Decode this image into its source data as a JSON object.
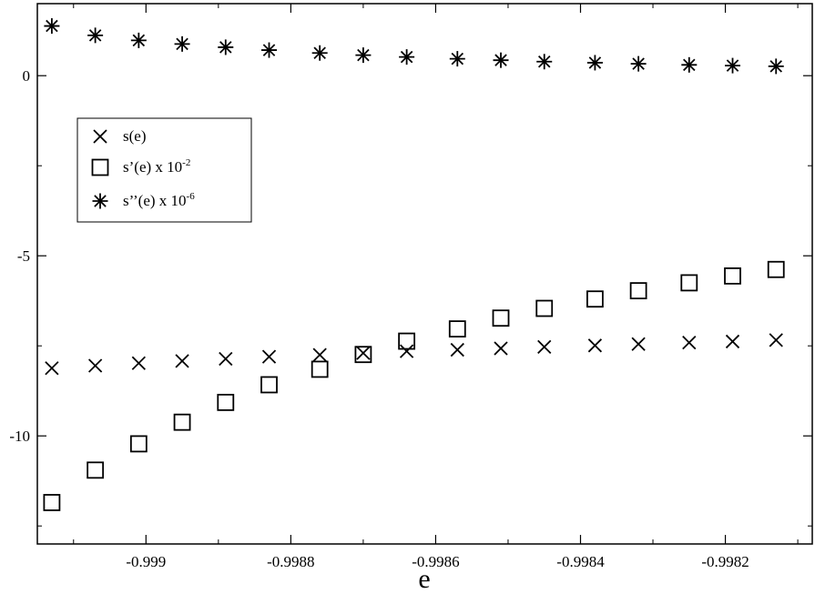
{
  "chart_data": {
    "type": "scatter",
    "title": "",
    "xlabel": "e",
    "ylabel": "",
    "xlim": [
      -0.99915,
      -0.99808
    ],
    "ylim": [
      -13,
      2
    ],
    "grid": false,
    "legend_position": "upper-left",
    "x_ticks": [
      -0.999,
      -0.9988,
      -0.9986,
      -0.9984,
      -0.9982
    ],
    "x_tick_labels": [
      "-0.999",
      "-0.9988",
      "-0.9986",
      "-0.9984",
      "-0.9982"
    ],
    "y_ticks": [
      0,
      -5,
      -10
    ],
    "y_tick_labels": [
      "0",
      "-5",
      "-10"
    ],
    "x": [
      -0.99913,
      -0.99907,
      -0.99901,
      -0.99895,
      -0.99889,
      -0.99883,
      -0.99876,
      -0.9987,
      -0.99864,
      -0.99857,
      -0.99851,
      -0.99845,
      -0.99838,
      -0.99832,
      -0.99825,
      -0.99819,
      -0.99813
    ],
    "series": [
      {
        "name": "s(e)",
        "marker": "x",
        "legend_base": "s(e)",
        "legend_exp": "",
        "values": [
          -8.12,
          -8.05,
          -7.98,
          -7.92,
          -7.86,
          -7.8,
          -7.75,
          -7.7,
          -7.65,
          -7.61,
          -7.57,
          -7.53,
          -7.49,
          -7.45,
          -7.41,
          -7.38,
          -7.34
        ]
      },
      {
        "name": "s'(e) x 10^-2",
        "marker": "square",
        "legend_base": "s’(e)  x 10",
        "legend_exp": "-2",
        "values": [
          -11.85,
          -10.95,
          -10.22,
          -9.62,
          -9.07,
          -8.58,
          -8.15,
          -7.74,
          -7.37,
          -7.03,
          -6.73,
          -6.46,
          -6.2,
          -5.97,
          -5.75,
          -5.56,
          -5.38
        ]
      },
      {
        "name": "s''(e) x 10^-6",
        "marker": "asterisk",
        "legend_base": "s’’(e)  x 10",
        "legend_exp": "-6",
        "values": [
          1.38,
          1.12,
          0.98,
          0.88,
          0.79,
          0.71,
          0.63,
          0.57,
          0.52,
          0.47,
          0.43,
          0.39,
          0.36,
          0.33,
          0.3,
          0.28,
          0.26
        ]
      }
    ]
  }
}
